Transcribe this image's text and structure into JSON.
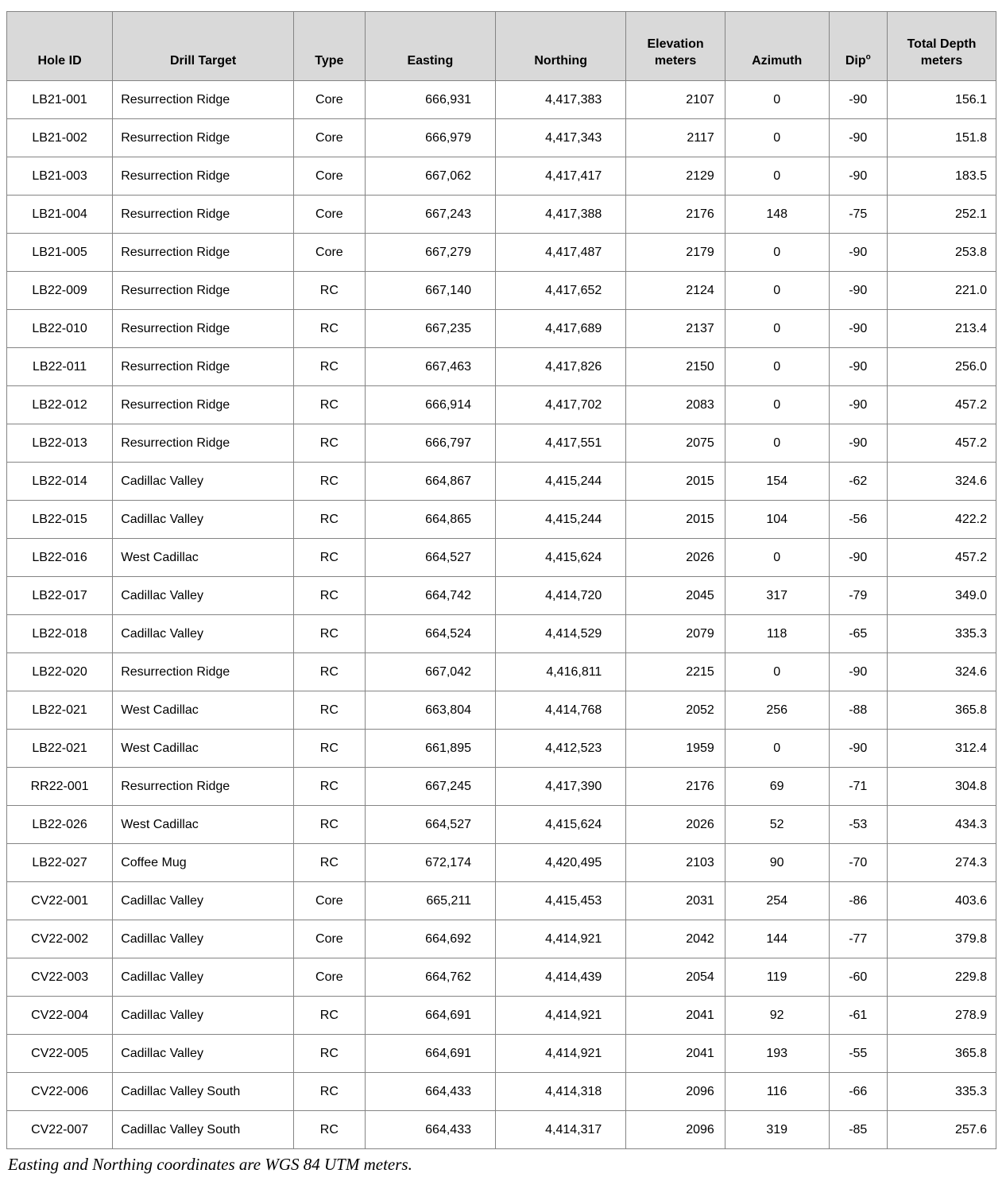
{
  "table": {
    "header_bg": "#d9d9d9",
    "border_color": "#848484",
    "headers": [
      "Hole ID",
      "Drill Target",
      "Type",
      "Easting",
      "Northing",
      "Elevation\nmeters",
      "Azimuth",
      "Dip",
      "Total Depth\nmeters"
    ],
    "dip_superscript": "o",
    "column_names": [
      "hole-id",
      "target",
      "type",
      "easting",
      "northing",
      "elev",
      "azimuth",
      "dip",
      "depth"
    ],
    "rows": [
      [
        "LB21-001",
        "Resurrection Ridge",
        "Core",
        "666,931",
        "4,417,383",
        "2107",
        "0",
        "-90",
        "156.1"
      ],
      [
        "LB21-002",
        "Resurrection Ridge",
        "Core",
        "666,979",
        "4,417,343",
        "2117",
        "0",
        "-90",
        "151.8"
      ],
      [
        "LB21-003",
        "Resurrection Ridge",
        "Core",
        "667,062",
        "4,417,417",
        "2129",
        "0",
        "-90",
        "183.5"
      ],
      [
        "LB21-004",
        "Resurrection Ridge",
        "Core",
        "667,243",
        "4,417,388",
        "2176",
        "148",
        "-75",
        "252.1"
      ],
      [
        "LB21-005",
        "Resurrection Ridge",
        "Core",
        "667,279",
        "4,417,487",
        "2179",
        "0",
        "-90",
        "253.8"
      ],
      [
        "LB22-009",
        "Resurrection Ridge",
        "RC",
        "667,140",
        "4,417,652",
        "2124",
        "0",
        "-90",
        "221.0"
      ],
      [
        "LB22-010",
        "Resurrection Ridge",
        "RC",
        "667,235",
        "4,417,689",
        "2137",
        "0",
        "-90",
        "213.4"
      ],
      [
        "LB22-011",
        "Resurrection Ridge",
        "RC",
        "667,463",
        "4,417,826",
        "2150",
        "0",
        "-90",
        "256.0"
      ],
      [
        "LB22-012",
        "Resurrection Ridge",
        "RC",
        "666,914",
        "4,417,702",
        "2083",
        "0",
        "-90",
        "457.2"
      ],
      [
        "LB22-013",
        "Resurrection Ridge",
        "RC",
        "666,797",
        "4,417,551",
        "2075",
        "0",
        "-90",
        "457.2"
      ],
      [
        "LB22-014",
        "Cadillac Valley",
        "RC",
        "664,867",
        "4,415,244",
        "2015",
        "154",
        "-62",
        "324.6"
      ],
      [
        "LB22-015",
        "Cadillac Valley",
        "RC",
        "664,865",
        "4,415,244",
        "2015",
        "104",
        "-56",
        "422.2"
      ],
      [
        "LB22-016",
        "West Cadillac",
        "RC",
        "664,527",
        "4,415,624",
        "2026",
        "0",
        "-90",
        "457.2"
      ],
      [
        "LB22-017",
        "Cadillac Valley",
        "RC",
        "664,742",
        "4,414,720",
        "2045",
        "317",
        "-79",
        "349.0"
      ],
      [
        "LB22-018",
        "Cadillac Valley",
        "RC",
        "664,524",
        "4,414,529",
        "2079",
        "118",
        "-65",
        "335.3"
      ],
      [
        "LB22-020",
        "Resurrection Ridge",
        "RC",
        "667,042",
        "4,416,811",
        "2215",
        "0",
        "-90",
        "324.6"
      ],
      [
        "LB22-021",
        "West Cadillac",
        "RC",
        "663,804",
        "4,414,768",
        "2052",
        "256",
        "-88",
        "365.8"
      ],
      [
        "LB22-021",
        "West Cadillac",
        "RC",
        "661,895",
        "4,412,523",
        "1959",
        "0",
        "-90",
        "312.4"
      ],
      [
        "RR22-001",
        "Resurrection Ridge",
        "RC",
        "667,245",
        "4,417,390",
        "2176",
        "69",
        "-71",
        "304.8"
      ],
      [
        "LB22-026",
        "West Cadillac",
        "RC",
        "664,527",
        "4,415,624",
        "2026",
        "52",
        "-53",
        "434.3"
      ],
      [
        "LB22-027",
        "Coffee Mug",
        "RC",
        "672,174",
        "4,420,495",
        "2103",
        "90",
        "-70",
        "274.3"
      ],
      [
        "CV22-001",
        "Cadillac Valley",
        "Core",
        "665,211",
        "4,415,453",
        "2031",
        "254",
        "-86",
        "403.6"
      ],
      [
        "CV22-002",
        "Cadillac Valley",
        "Core",
        "664,692",
        "4,414,921",
        "2042",
        "144",
        "-77",
        "379.8"
      ],
      [
        "CV22-003",
        "Cadillac Valley",
        "Core",
        "664,762",
        "4,414,439",
        "2054",
        "119",
        "-60",
        "229.8"
      ],
      [
        "CV22-004",
        "Cadillac Valley",
        "RC",
        "664,691",
        "4,414,921",
        "2041",
        "92",
        "-61",
        "278.9"
      ],
      [
        "CV22-005",
        "Cadillac Valley",
        "RC",
        "664,691",
        "4,414,921",
        "2041",
        "193",
        "-55",
        "365.8"
      ],
      [
        "CV22-006",
        "Cadillac Valley South",
        "RC",
        "664,433",
        "4,414,318",
        "2096",
        "116",
        "-66",
        "335.3"
      ],
      [
        "CV22-007",
        "Cadillac Valley South",
        "RC",
        "664,433",
        "4,414,317",
        "2096",
        "319",
        "-85",
        "257.6"
      ]
    ]
  },
  "footer": {
    "note": "Easting and Northing coordinates are WGS 84 UTM meters."
  }
}
